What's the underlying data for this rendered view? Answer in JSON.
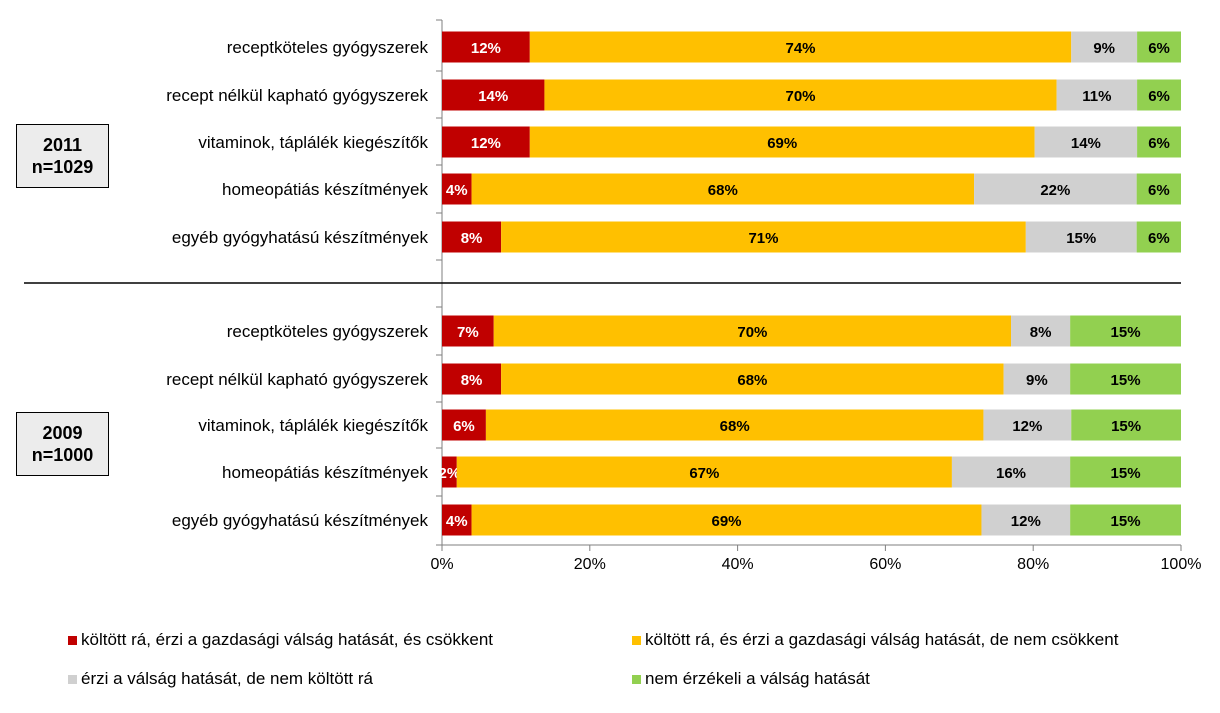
{
  "colors": {
    "series": [
      "#C00000",
      "#FFC000",
      "#D0D0D0",
      "#92D050"
    ],
    "label_text": [
      "#ffffff",
      "#000000",
      "#000000",
      "#000000"
    ],
    "axis": "#7f7f7f"
  },
  "chart_data": {
    "type": "bar",
    "orientation": "horizontal",
    "stacked": "percent",
    "xlim": [
      0,
      100
    ],
    "x_ticks": [
      "0%",
      "20%",
      "40%",
      "60%",
      "80%",
      "100%"
    ],
    "series": [
      {
        "name": "költött rá, érzi a gazdasági válság hatását, és csökkent"
      },
      {
        "name": "költött rá, és érzi a gazdasági válság hatását, de nem csökkent"
      },
      {
        "name": "érzi a válság hatását, de nem költött rá"
      },
      {
        "name": "nem érzékeli a válság hatását"
      }
    ],
    "groups": [
      {
        "label_line1": "2011",
        "label_line2": "n=1029",
        "rows": [
          {
            "category": "receptköteles gyógyszerek",
            "values": [
              12,
              74,
              9,
              6
            ],
            "labels": [
              "12%",
              "74%",
              "9%",
              "6%"
            ]
          },
          {
            "category": "recept nélkül kapható gyógyszerek",
            "values": [
              14,
              70,
              11,
              6
            ],
            "labels": [
              "14%",
              "70%",
              "11%",
              "6%"
            ]
          },
          {
            "category": "vitaminok, táplálék kiegészítők",
            "values": [
              12,
              69,
              14,
              6
            ],
            "labels": [
              "12%",
              "69%",
              "14%",
              "6%"
            ]
          },
          {
            "category": "homeopátiás készítmények",
            "values": [
              4,
              68,
              22,
              6
            ],
            "labels": [
              "4%",
              "68%",
              "22%",
              "6%"
            ]
          },
          {
            "category": "egyéb gyógyhatású készítmények",
            "values": [
              8,
              71,
              15,
              6
            ],
            "labels": [
              "8%",
              "71%",
              "15%",
              "6%"
            ]
          }
        ]
      },
      {
        "label_line1": "2009",
        "label_line2": "n=1000",
        "rows": [
          {
            "category": "receptköteles gyógyszerek",
            "values": [
              7,
              70,
              8,
              15
            ],
            "labels": [
              "7%",
              "70%",
              "8%",
              "15%"
            ]
          },
          {
            "category": "recept nélkül kapható gyógyszerek",
            "values": [
              8,
              68,
              9,
              15
            ],
            "labels": [
              "8%",
              "68%",
              "9%",
              "15%"
            ]
          },
          {
            "category": "vitaminok, táplálék kiegészítők",
            "values": [
              6,
              68,
              12,
              15
            ],
            "labels": [
              "6%",
              "68%",
              "12%",
              "15%"
            ]
          },
          {
            "category": "homeopátiás készítmények",
            "values": [
              2,
              67,
              16,
              15
            ],
            "labels": [
              "2%",
              "67%",
              "16%",
              "15%"
            ]
          },
          {
            "category": "egyéb gyógyhatású készítmények",
            "values": [
              4,
              69,
              12,
              15
            ],
            "labels": [
              "4%",
              "69%",
              "12%",
              "15%"
            ]
          }
        ]
      }
    ]
  }
}
